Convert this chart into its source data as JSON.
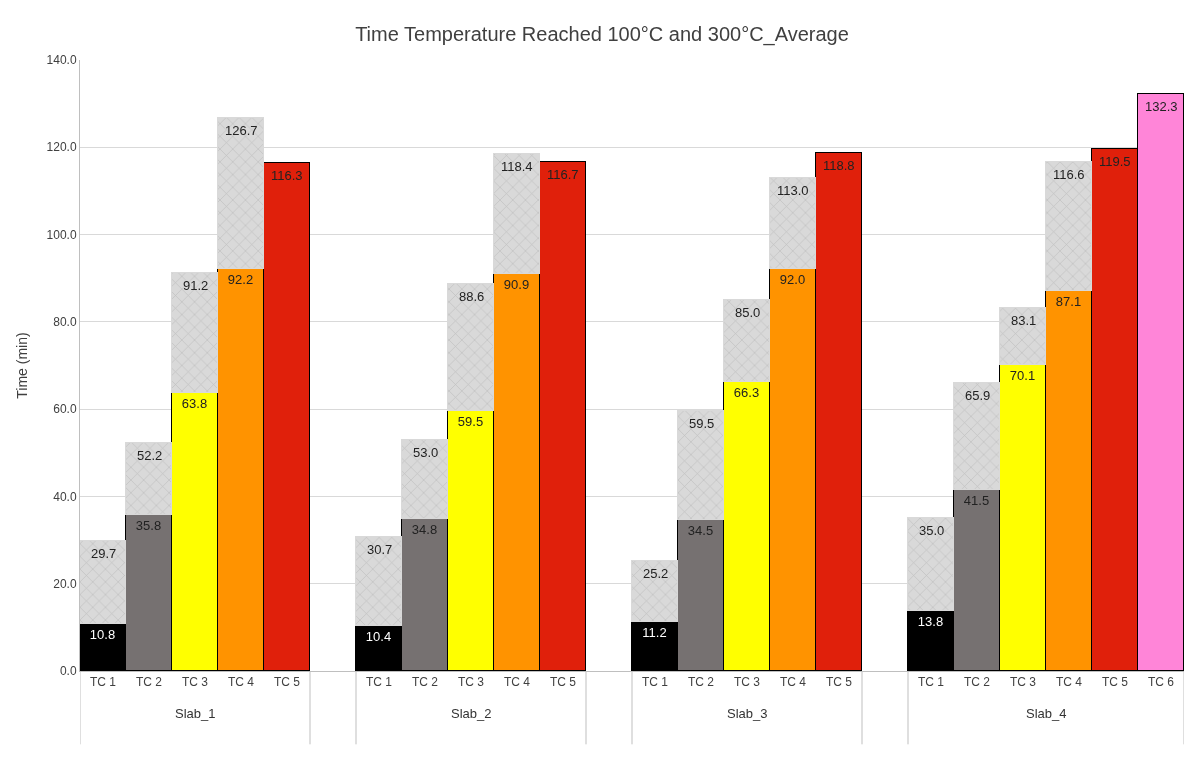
{
  "chart_data": {
    "type": "bar",
    "title": "Time Temperature Reached 100°C and 300°C_Average",
    "ylabel": "Time (min)",
    "stacked": true,
    "categories": [
      "TC 1",
      "TC 2",
      "TC 3",
      "TC 4",
      "TC 5",
      null,
      "TC 1",
      "TC 2",
      "TC 3",
      "TC 4",
      "TC 5",
      null,
      "TC 1",
      "TC 2",
      "TC 3",
      "TC 4",
      "TC 5",
      null,
      "TC 1",
      "TC 2",
      "TC 3",
      "TC 4",
      "TC 5",
      "TC 6"
    ],
    "series": [
      {
        "colors": [
          "#000000",
          "#767171",
          "#ffff00",
          "#ff9300",
          "#e0200b",
          null,
          "#000000",
          "#767171",
          "#ffff00",
          "#ff9300",
          "#e0200b",
          null,
          "#000000",
          "#767171",
          "#ffff00",
          "#ff9300",
          "#e0200b",
          null,
          "#000000",
          "#767171",
          "#ffff00",
          "#ff9300",
          "#e0200b",
          "#ff85d8"
        ],
        "values": [
          10.8,
          35.8,
          63.8,
          92.2,
          116.3,
          null,
          10.4,
          34.8,
          59.5,
          90.9,
          116.7,
          null,
          11.2,
          34.5,
          66.3,
          92.0,
          118.8,
          null,
          13.8,
          41.5,
          70.1,
          87.1,
          119.5,
          132.3
        ],
        "value_labels": [
          "10.8",
          "35.8",
          "63.8",
          "92.2",
          null,
          null,
          "10.4",
          "34.8",
          "59.5",
          "90.9",
          null,
          null,
          "11.2",
          "34.5",
          "66.3",
          "92.0",
          null,
          null,
          "13.8",
          "41.5",
          "70.1",
          "87.1",
          null,
          null
        ]
      },
      {
        "color": "#d9d9d9",
        "values": [
          18.9,
          16.4,
          27.4,
          34.5,
          null,
          null,
          20.3,
          18.2,
          29.1,
          27.5,
          null,
          null,
          14.0,
          25.0,
          18.7,
          21.0,
          null,
          null,
          21.2,
          24.4,
          13.0,
          29.5,
          null,
          null
        ]
      }
    ],
    "totals": [
      "29.7",
      "52.2",
      "91.2",
      "126.7",
      "116.3",
      null,
      "30.7",
      "53.0",
      "88.6",
      "118.4",
      "116.7",
      null,
      "25.2",
      "59.5",
      "85.0",
      "113.0",
      "118.8",
      null,
      "35.0",
      "65.9",
      "83.1",
      "116.6",
      "119.5",
      "132.3"
    ],
    "annotations": [
      "Slab_1",
      "Slab_2",
      "Slab_3",
      "Slab_4"
    ],
    "ylim": [
      0,
      140
    ],
    "yticks": [
      {
        "value": 0,
        "label": "0.0"
      },
      {
        "value": 20,
        "label": "20.0"
      },
      {
        "value": 40,
        "label": "40.0"
      },
      {
        "value": 60,
        "label": "60.0"
      },
      {
        "value": 80,
        "label": "80.0"
      },
      {
        "value": 100,
        "label": "100.0"
      },
      {
        "value": 120,
        "label": "120.0"
      },
      {
        "value": 140,
        "label": "140.0"
      }
    ],
    "grid": "y"
  }
}
